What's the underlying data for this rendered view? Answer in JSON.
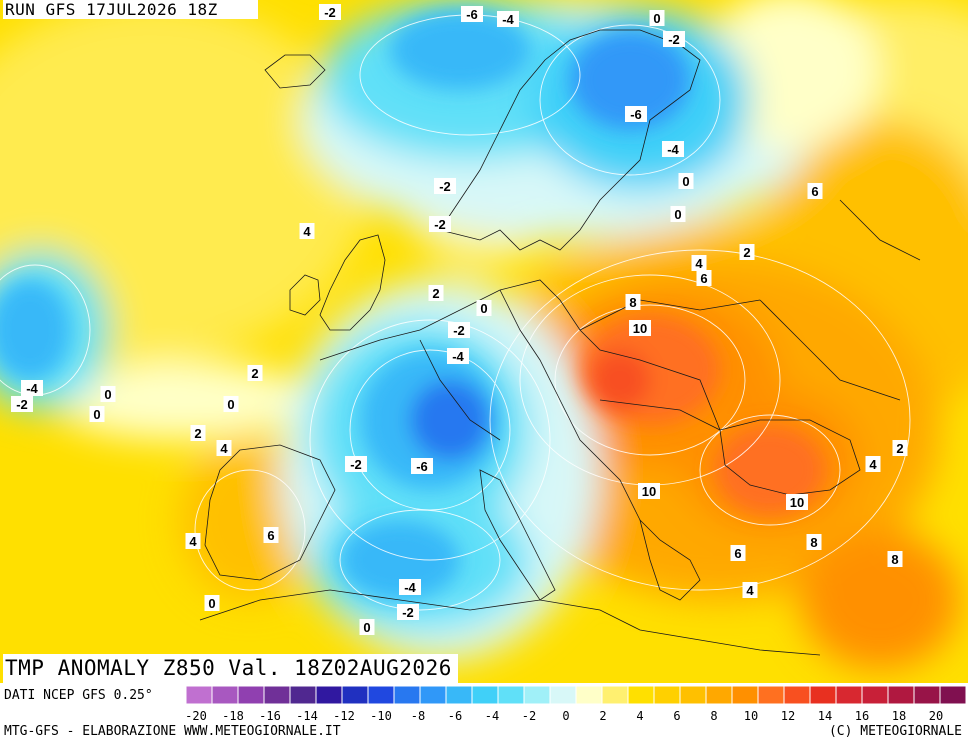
{
  "run_label": "RUN GFS 17JUL2026 18Z",
  "title": "TMP ANOMALY Z850 Val. 18Z02AUG2026",
  "footer": {
    "source": "DATI NCEP GFS 0.25°",
    "credit": "MTG-GFS - ELABORAZIONE WWW.METEOGIORNALE.IT",
    "copyright": "(C) METEOGIORNALE"
  },
  "legend": {
    "colors": [
      "#c070d0",
      "#a858c0",
      "#9040b0",
      "#703098",
      "#502890",
      "#3018a0",
      "#2030c0",
      "#2048e0",
      "#2878f0",
      "#3098f8",
      "#38b8f8",
      "#40d0f8",
      "#60e0f8",
      "#a0f0f8",
      "#d8f8f8",
      "#ffffc8",
      "#fff070",
      "#ffe000",
      "#ffd000",
      "#ffc000",
      "#ffa800",
      "#ff9000",
      "#ff7020",
      "#f85020",
      "#e83020",
      "#d82830",
      "#c82038",
      "#b01840",
      "#981448",
      "#801050"
    ],
    "tick_labels": [
      "-20",
      "-18",
      "-16",
      "-14",
      "-12",
      "-10",
      "-8",
      "-6",
      "-4",
      "-2",
      "0",
      "2",
      "4",
      "6",
      "8",
      "10",
      "12",
      "14",
      "16",
      "18",
      "20"
    ],
    "tick_every": 2,
    "min": -20,
    "max": 20
  },
  "contour_labels": [
    "-2",
    "-6",
    "-4",
    "0",
    "-2",
    "-6",
    "-4",
    "-2",
    "0",
    "6",
    "-2",
    "0",
    "2",
    "4",
    "4",
    "6",
    "2",
    "0",
    "8",
    "-2",
    "10",
    "-4",
    "-4",
    "-2",
    "0",
    "0",
    "2",
    "0",
    "2",
    "4",
    "-2",
    "-6",
    "2",
    "4",
    "4",
    "6",
    "10",
    "10",
    "6",
    "8",
    "8",
    "-4",
    "4",
    "0",
    "-2",
    "0"
  ]
}
